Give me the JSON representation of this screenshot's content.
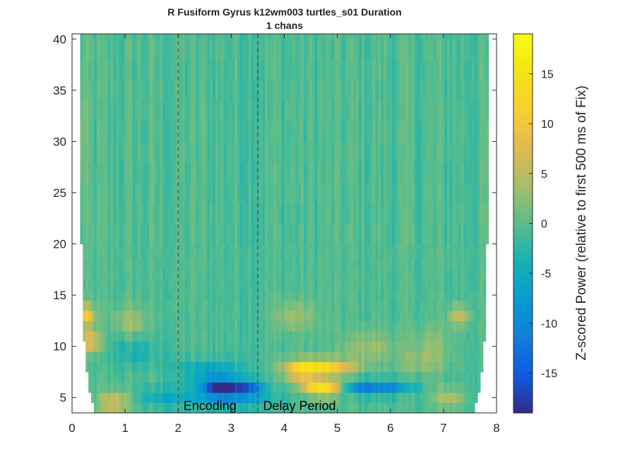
{
  "chart_data": {
    "type": "heatmap",
    "title_line1": "R Fusiform Gyrus k12wm003 turtles_s01 Duration",
    "title_line2": "1 chans",
    "xlim": [
      0,
      8
    ],
    "ylim": [
      3.5,
      40.5
    ],
    "x_ticks": [
      0,
      1,
      2,
      3,
      4,
      5,
      6,
      7,
      8
    ],
    "y_ticks": [
      5,
      10,
      15,
      20,
      25,
      30,
      35,
      40
    ],
    "colorbar": {
      "label": "Z-scored Power (relative to first 500 ms of Fix)",
      "range": [
        -19,
        19
      ],
      "ticks": [
        -15,
        -10,
        -5,
        0,
        5,
        10,
        15
      ],
      "colormap": "parula"
    },
    "event_lines": [
      {
        "x": 2.0,
        "style": "dashed"
      },
      {
        "x": 3.5,
        "style": "dashed"
      }
    ],
    "annotations": [
      {
        "text": "Encoding",
        "x": 2.1,
        "y": 4.4
      },
      {
        "text": "Delay Period",
        "x": 3.6,
        "y": 4.4
      }
    ],
    "frequency_range": [
      3.5,
      40.5
    ],
    "time_range": [
      0.1,
      7.9
    ],
    "hotspots": [
      {
        "t": 2.8,
        "f": 6.0,
        "value": -17,
        "dt": 0.35,
        "df": 0.8
      },
      {
        "t": 3.3,
        "f": 6.0,
        "value": -10,
        "dt": 0.3,
        "df": 0.7
      },
      {
        "t": 2.6,
        "f": 7.5,
        "value": -6,
        "dt": 0.6,
        "df": 1.2
      },
      {
        "t": 3.0,
        "f": 5.0,
        "value": -6,
        "dt": 0.8,
        "df": 1.0
      },
      {
        "t": 1.8,
        "f": 5.0,
        "value": -4,
        "dt": 0.6,
        "df": 1.0
      },
      {
        "t": 4.7,
        "f": 6.0,
        "value": 15,
        "dt": 0.35,
        "df": 0.8
      },
      {
        "t": 4.7,
        "f": 8.0,
        "value": 13,
        "dt": 0.6,
        "df": 0.8
      },
      {
        "t": 4.3,
        "f": 7.5,
        "value": 8,
        "dt": 0.3,
        "df": 1.0
      },
      {
        "t": 5.9,
        "f": 6.0,
        "value": -9,
        "dt": 0.5,
        "df": 0.7
      },
      {
        "t": 5.4,
        "f": 6.0,
        "value": -6,
        "dt": 0.3,
        "df": 0.7
      },
      {
        "t": 0.25,
        "f": 13.0,
        "value": 11,
        "dt": 0.18,
        "df": 1.0
      },
      {
        "t": 0.35,
        "f": 10.5,
        "value": 9,
        "dt": 0.2,
        "df": 1.0
      },
      {
        "t": 0.8,
        "f": 4.5,
        "value": 8,
        "dt": 0.3,
        "df": 1.0
      },
      {
        "t": 1.1,
        "f": 12.5,
        "value": 4,
        "dt": 0.3,
        "df": 1.5
      },
      {
        "t": 7.3,
        "f": 13.0,
        "value": 7,
        "dt": 0.2,
        "df": 1.0
      },
      {
        "t": 6.8,
        "f": 10.5,
        "value": 3,
        "dt": 0.4,
        "df": 1.5
      },
      {
        "t": 4.2,
        "f": 13.0,
        "value": 4,
        "dt": 0.4,
        "df": 1.5
      },
      {
        "t": 5.6,
        "f": 10.0,
        "value": 4,
        "dt": 0.5,
        "df": 1.5
      },
      {
        "t": 6.6,
        "f": 8.5,
        "value": 4,
        "dt": 0.4,
        "df": 1.0
      },
      {
        "t": 0.1,
        "f": 30.0,
        "value": 4,
        "dt": 0.12,
        "df": 6.0
      },
      {
        "t": 7.9,
        "f": 27.0,
        "value": 3,
        "dt": 0.1,
        "df": 6.0
      },
      {
        "t": 1.2,
        "f": 9.5,
        "value": -3,
        "dt": 0.5,
        "df": 1.5
      },
      {
        "t": 7.1,
        "f": 5.0,
        "value": 5,
        "dt": 0.3,
        "df": 1.0
      }
    ]
  }
}
